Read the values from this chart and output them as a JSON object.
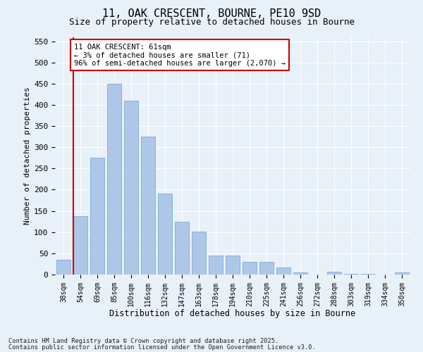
{
  "title1": "11, OAK CRESCENT, BOURNE, PE10 9SD",
  "title2": "Size of property relative to detached houses in Bourne",
  "xlabel": "Distribution of detached houses by size in Bourne",
  "ylabel": "Number of detached properties",
  "categories": [
    "38sqm",
    "54sqm",
    "69sqm",
    "85sqm",
    "100sqm",
    "116sqm",
    "132sqm",
    "147sqm",
    "163sqm",
    "178sqm",
    "194sqm",
    "210sqm",
    "225sqm",
    "241sqm",
    "256sqm",
    "272sqm",
    "288sqm",
    "303sqm",
    "319sqm",
    "334sqm",
    "350sqm"
  ],
  "values": [
    35,
    137,
    275,
    450,
    410,
    325,
    190,
    125,
    102,
    45,
    45,
    30,
    30,
    17,
    5,
    0,
    7,
    1,
    2,
    0,
    5
  ],
  "bar_color": "#aec6e8",
  "bar_edge_color": "#7aaed0",
  "vline_color": "#cc0000",
  "vline_x": 0.575,
  "annotation_text": "11 OAK CRESCENT: 61sqm\n← 3% of detached houses are smaller (71)\n96% of semi-detached houses are larger (2,070) →",
  "annotation_box_color": "#ffffff",
  "annotation_box_edge": "#cc0000",
  "ylim": [
    0,
    560
  ],
  "yticks": [
    0,
    50,
    100,
    150,
    200,
    250,
    300,
    350,
    400,
    450,
    500,
    550
  ],
  "background_color": "#e8f0f8",
  "footer1": "Contains HM Land Registry data © Crown copyright and database right 2025.",
  "footer2": "Contains public sector information licensed under the Open Government Licence v3.0."
}
